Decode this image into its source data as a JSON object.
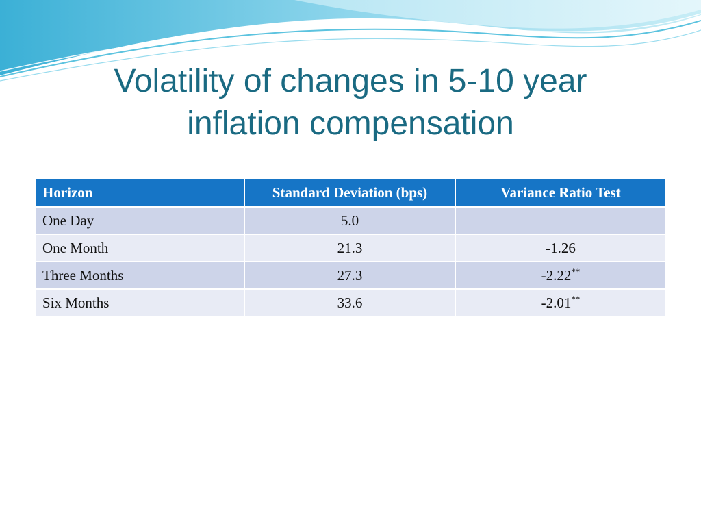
{
  "slide": {
    "title_lines": [
      "Volatility of changes in 5-10 year",
      "inflation compensation"
    ],
    "title_color": "#1a6a82"
  },
  "table": {
    "header_color": "#1675c6",
    "row_odd_color": "#cdd4e9",
    "row_even_color": "#e8ebf5",
    "headers": [
      "Horizon",
      "Standard Deviation (bps)",
      "Variance Ratio Test"
    ],
    "rows": [
      {
        "horizon": "One Day",
        "std_dev": "5.0",
        "variance_ratio": "",
        "significance": ""
      },
      {
        "horizon": "One Month",
        "std_dev": "21.3",
        "variance_ratio": "-1.26",
        "significance": ""
      },
      {
        "horizon": "Three Months",
        "std_dev": "27.3",
        "variance_ratio": "-2.22",
        "significance": "**"
      },
      {
        "horizon": "Six Months",
        "std_dev": "33.6",
        "variance_ratio": "-2.01",
        "significance": "**"
      }
    ]
  }
}
